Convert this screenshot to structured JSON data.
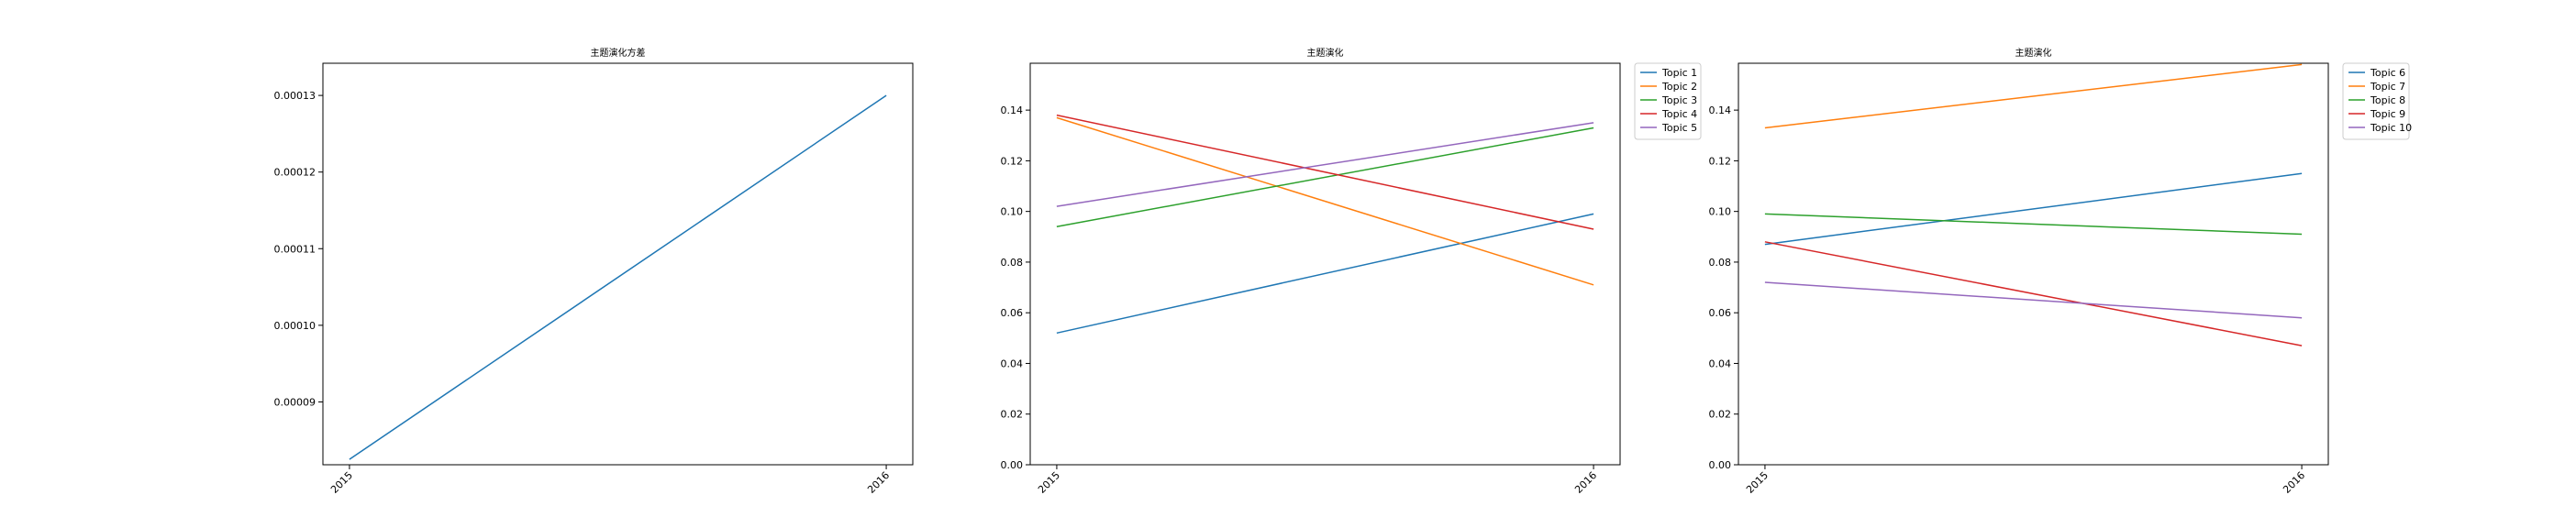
{
  "chart_data": [
    {
      "type": "line",
      "title": "主题演化方差",
      "xlabel": "",
      "ylabel": "",
      "x": [
        "2015",
        "2016"
      ],
      "ylim": [
        8.18e-05,
        0.0001342
      ],
      "yticks": [
        "0.00009",
        "0.00010",
        "0.00011",
        "0.00012",
        "0.00013"
      ],
      "ytick_values": [
        9e-05,
        0.0001,
        0.00011,
        0.00012,
        0.00013
      ],
      "grid": false,
      "legend": null,
      "series": [
        {
          "values": [
            8.25e-05,
            0.00013
          ],
          "color": "#1f77b4"
        }
      ]
    },
    {
      "type": "line",
      "title": "主题演化",
      "xlabel": "",
      "ylabel": "",
      "x": [
        "2015",
        "2016"
      ],
      "ylim": [
        0.0,
        0.1585
      ],
      "yticks": [
        "0.00",
        "0.02",
        "0.04",
        "0.06",
        "0.08",
        "0.10",
        "0.12",
        "0.14"
      ],
      "ytick_values": [
        0.0,
        0.02,
        0.04,
        0.06,
        0.08,
        0.1,
        0.12,
        0.14
      ],
      "grid": false,
      "legend": "outside-upper-right",
      "series": [
        {
          "name": "Topic 1",
          "values": [
            0.052,
            0.099
          ],
          "color": "#1f77b4"
        },
        {
          "name": "Topic 2",
          "values": [
            0.137,
            0.071
          ],
          "color": "#ff7f0e"
        },
        {
          "name": "Topic 3",
          "values": [
            0.094,
            0.133
          ],
          "color": "#2ca02c"
        },
        {
          "name": "Topic 4",
          "values": [
            0.138,
            0.093
          ],
          "color": "#d62728"
        },
        {
          "name": "Topic 5",
          "values": [
            0.102,
            0.135
          ],
          "color": "#9467bd"
        }
      ]
    },
    {
      "type": "line",
      "title": "主题演化",
      "xlabel": "",
      "ylabel": "",
      "x": [
        "2015",
        "2016"
      ],
      "ylim": [
        0.0,
        0.1585
      ],
      "yticks": [
        "0.00",
        "0.02",
        "0.04",
        "0.06",
        "0.08",
        "0.10",
        "0.12",
        "0.14"
      ],
      "ytick_values": [
        0.0,
        0.02,
        0.04,
        0.06,
        0.08,
        0.1,
        0.12,
        0.14
      ],
      "grid": false,
      "legend": "outside-upper-right",
      "series": [
        {
          "name": "Topic 6",
          "values": [
            0.087,
            0.115
          ],
          "color": "#1f77b4"
        },
        {
          "name": "Topic 7",
          "values": [
            0.133,
            0.158
          ],
          "color": "#ff7f0e"
        },
        {
          "name": "Topic 8",
          "values": [
            0.099,
            0.091
          ],
          "color": "#2ca02c"
        },
        {
          "name": "Topic 9",
          "values": [
            0.088,
            0.047
          ],
          "color": "#d62728"
        },
        {
          "name": "Topic 10",
          "values": [
            0.072,
            0.058
          ],
          "color": "#9467bd"
        }
      ]
    }
  ]
}
